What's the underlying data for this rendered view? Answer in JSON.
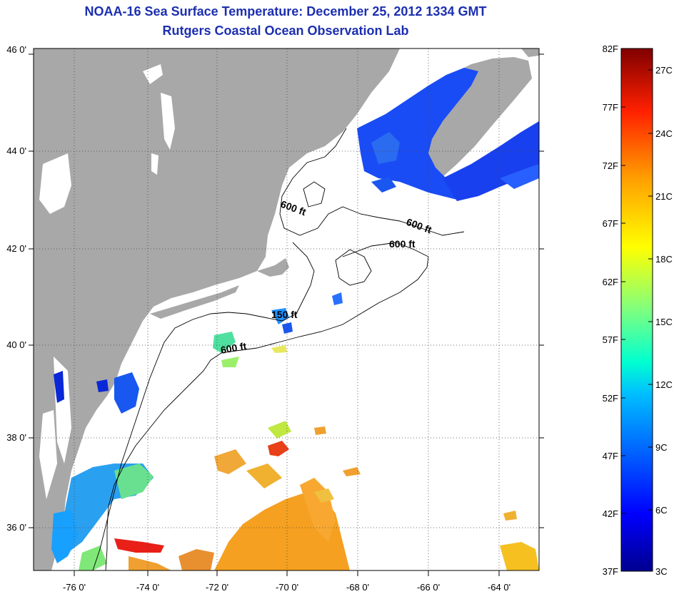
{
  "title_line1": "NOAA-16 Sea Surface Temperature:  December 25, 2012 1334 GMT",
  "title_line2": "Rutgers Coastal Ocean Observation Lab",
  "colors": {
    "land": "#a8a8a8",
    "cloud": "#ffffff",
    "contour": "#000000",
    "grid": "#555555",
    "title": "#1c2fb0"
  },
  "map": {
    "lon_labels": [
      "-76 0'",
      "-74 0'",
      "-72 0'",
      "-70 0'",
      "-68 0'",
      "-66 0'",
      "-64 0'"
    ],
    "lat_labels": [
      "46 0'",
      "44 0'",
      "42 0'",
      "40 0'",
      "38 0'",
      "36 0'"
    ],
    "lon_range": [
      -77.0,
      -63.0
    ],
    "lat_range": [
      35.0,
      46.0
    ],
    "gridlines": "dotted",
    "contour_labels": [
      {
        "text": "600 ft",
        "lon": -69.3,
        "lat": 43.0,
        "rotation": 20
      },
      {
        "text": "600 ft",
        "lon": -66.5,
        "lat": 42.5,
        "rotation": 20
      },
      {
        "text": "600 ft",
        "lon": -66.4,
        "lat": 42.1,
        "rotation": 0
      },
      {
        "text": "150 ft",
        "lon": -70.4,
        "lat": 40.5,
        "rotation": 0
      },
      {
        "text": "600 ft",
        "lon": -71.2,
        "lat": 39.8,
        "rotation": -10
      }
    ]
  },
  "colorbar": {
    "fahrenheit_labels": [
      "82F",
      "77F",
      "72F",
      "67F",
      "62F",
      "57F",
      "52F",
      "47F",
      "42F",
      "37F"
    ],
    "celsius_labels": [
      "27C",
      "24C",
      "21C",
      "18C",
      "15C",
      "12C",
      "9C",
      "6C",
      "3C"
    ],
    "range_f": [
      37,
      82
    ]
  }
}
